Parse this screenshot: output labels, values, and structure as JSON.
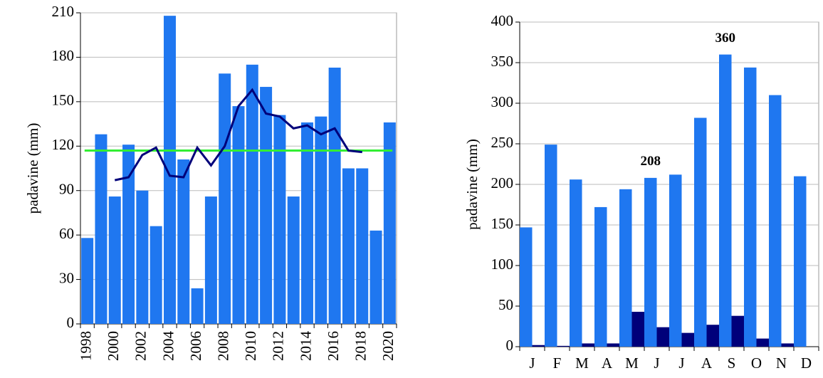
{
  "chart_data": [
    {
      "type": "bar",
      "ylabel": "padavine (mm)",
      "categories": [
        "1998",
        null,
        "2000",
        null,
        "2002",
        null,
        "2004",
        null,
        "2006",
        null,
        "2008",
        null,
        "2010",
        null,
        "2012",
        null,
        "2014",
        null,
        "2016",
        null,
        "2018",
        null,
        "2020"
      ],
      "series": [
        {
          "type": "bar",
          "color": "#1f77f0",
          "values": [
            58,
            128,
            86,
            121,
            90,
            66,
            208,
            111,
            24,
            86,
            169,
            147,
            175,
            160,
            141,
            86,
            136,
            140,
            173,
            105,
            105,
            63,
            136
          ]
        },
        {
          "type": "line",
          "color": "#00007a",
          "values": [
            null,
            null,
            97,
            99,
            114,
            119,
            100,
            99,
            119,
            107,
            120,
            147,
            158,
            142,
            140,
            132,
            134,
            128,
            132,
            117,
            116,
            null,
            null
          ]
        }
      ],
      "reference_line": {
        "value": 117,
        "color": "#33ee33"
      },
      "ylim": [
        0,
        210
      ],
      "yticks": [
        0,
        30,
        60,
        90,
        120,
        150,
        180,
        210
      ],
      "grid": true
    },
    {
      "type": "bar",
      "ylabel": "padavine (mm)",
      "categories": [
        "J",
        "F",
        "M",
        "A",
        "M",
        "J",
        "J",
        "A",
        "S",
        "O",
        "N",
        "D"
      ],
      "series": [
        {
          "type": "bar",
          "color": "#1f77f0",
          "values": [
            147,
            249,
            206,
            172,
            194,
            208,
            212,
            282,
            360,
            344,
            310,
            210
          ],
          "value_labels": [
            null,
            null,
            null,
            null,
            null,
            "208",
            null,
            null,
            "360",
            null,
            null,
            null
          ]
        },
        {
          "type": "bar",
          "color": "#00007a",
          "values": [
            2,
            1,
            4,
            4,
            43,
            24,
            17,
            27,
            38,
            10,
            4,
            0
          ]
        }
      ],
      "ylim": [
        0,
        400
      ],
      "yticks": [
        0,
        50,
        100,
        150,
        200,
        250,
        300,
        350,
        400
      ],
      "grid": true
    }
  ]
}
